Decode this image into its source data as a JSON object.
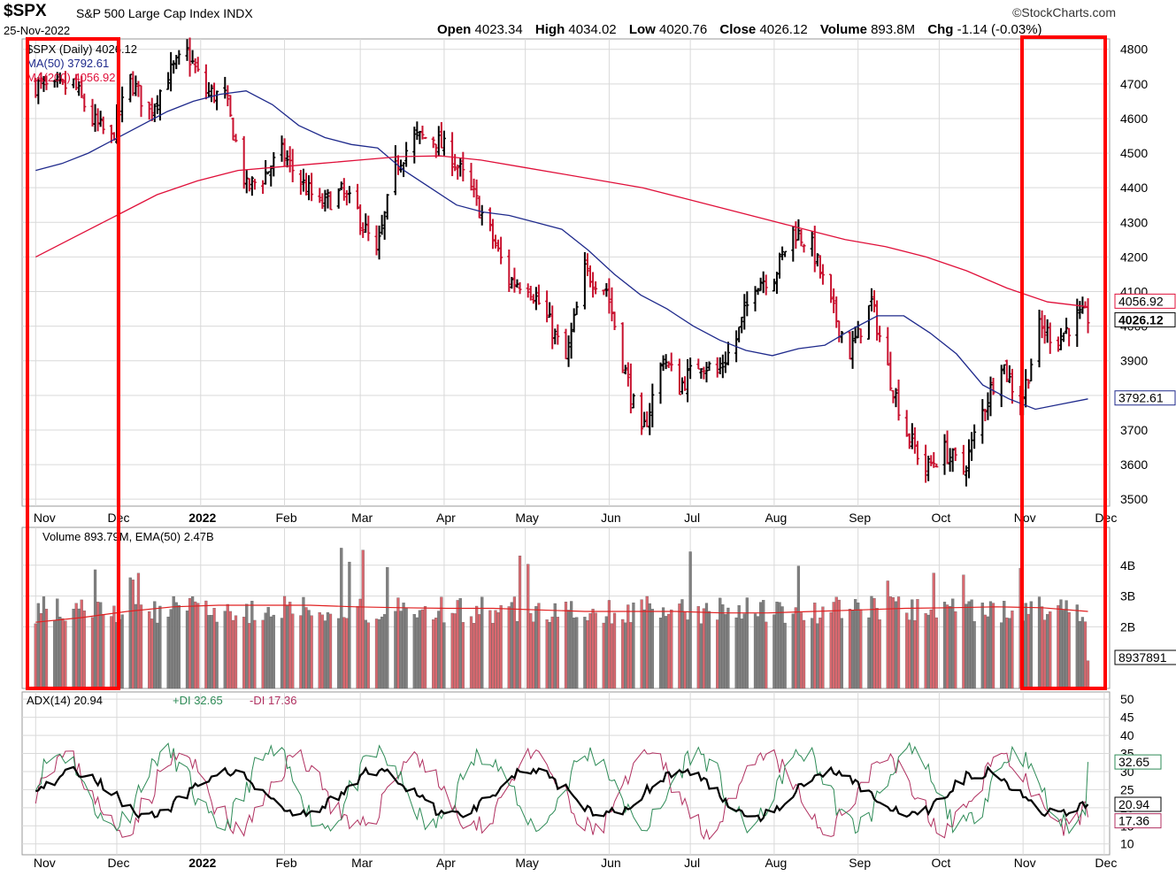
{
  "header": {
    "symbol": "$SPX",
    "name": "S&P 500 Large Cap Index INDX",
    "date": "25-Nov-2022",
    "logo": "©StockCharts.com",
    "open_label": "Open",
    "open": "4023.34",
    "high_label": "High",
    "high": "4034.02",
    "low_label": "Low",
    "low": "4020.76",
    "close_label": "Close",
    "close": "4026.12",
    "volume_label": "Volume",
    "volume": "893.8M",
    "chg_label": "Chg",
    "chg": "-1.14 (-0.03%)"
  },
  "colors": {
    "up": "#000000",
    "down": "#c8102e",
    "ma50": "#1f2a8c",
    "ma200": "#e0103a",
    "vol_up": "#808080",
    "vol_down": "#d9686f",
    "adx": "#000000",
    "pdi": "#2e8b57",
    "mdi": "#b03060",
    "highlight": "#ff0000",
    "grid": "#d9d9d9"
  },
  "chart_data": [
    {
      "type": "ohlc",
      "title": "$SPX (Daily) 4026.12",
      "legend": [
        "$SPX (Daily) 4026.12",
        "MA(50) 3792.61",
        "MA(200) 4056.92"
      ],
      "x_labels": [
        "Nov",
        "Dec",
        "2022",
        "Feb",
        "Mar",
        "Apr",
        "May",
        "Jun",
        "Jul",
        "Aug",
        "Sep",
        "Oct",
        "Nov",
        "Dec"
      ],
      "y_ticks": [
        3500,
        3600,
        3700,
        3800,
        3900,
        4000,
        4100,
        4200,
        4300,
        4400,
        4500,
        4600,
        4700,
        4800
      ],
      "ylim": [
        3480,
        4830
      ],
      "axis_tags": [
        "4056.92",
        "4026.12",
        "3792.61"
      ],
      "close_series": {
        "x": [
          "2021-11-01",
          "2021-11-08",
          "2021-11-15",
          "2021-11-22",
          "2021-11-29",
          "2021-12-06",
          "2021-12-13",
          "2021-12-20",
          "2021-12-27",
          "2022-01-03",
          "2022-01-10",
          "2022-01-18",
          "2022-01-24",
          "2022-01-31",
          "2022-02-07",
          "2022-02-14",
          "2022-02-22",
          "2022-02-28",
          "2022-03-07",
          "2022-03-14",
          "2022-03-21",
          "2022-03-28",
          "2022-04-04",
          "2022-04-11",
          "2022-04-18",
          "2022-04-25",
          "2022-05-02",
          "2022-05-09",
          "2022-05-16",
          "2022-05-23",
          "2022-05-31",
          "2022-06-06",
          "2022-06-13",
          "2022-06-21",
          "2022-06-27",
          "2022-07-05",
          "2022-07-11",
          "2022-07-18",
          "2022-07-25",
          "2022-08-01",
          "2022-08-08",
          "2022-08-15",
          "2022-08-22",
          "2022-08-29",
          "2022-09-06",
          "2022-09-12",
          "2022-09-19",
          "2022-09-26",
          "2022-10-03",
          "2022-10-10",
          "2022-10-17",
          "2022-10-24",
          "2022-10-31",
          "2022-11-07",
          "2022-11-14",
          "2022-11-21",
          "2022-11-25"
        ],
        "close": [
          4697,
          4682,
          4700,
          4595,
          4540,
          4712,
          4620,
          4725,
          4790,
          4677,
          4662,
          4398,
          4432,
          4500,
          4419,
          4349,
          4385,
          4329,
          4204,
          4463,
          4543,
          4546,
          4488,
          4392,
          4272,
          4132,
          4123,
          4024,
          3901,
          4158,
          4108,
          3901,
          3675,
          3912,
          3825,
          3899,
          3863,
          3962,
          4130,
          4145,
          4280,
          4228,
          4058,
          3924,
          4067,
          3874,
          3693,
          3586,
          3640,
          3583,
          3753,
          3901,
          3771,
          3993,
          3965,
          4026,
          4026
        ]
      },
      "ma50": {
        "x_start": "2021-11-01",
        "x_end": "2022-11-25",
        "values": [
          4450,
          4470,
          4500,
          4540,
          4580,
          4620,
          4650,
          4670,
          4680,
          4640,
          4580,
          4545,
          4525,
          4515,
          4450,
          4400,
          4350,
          4330,
          4320,
          4300,
          4280,
          4220,
          4150,
          4090,
          4050,
          4000,
          3960,
          3930,
          3915,
          3935,
          3945,
          3990,
          4030,
          4030,
          3980,
          3920,
          3830,
          3790,
          3760,
          3775,
          3790
        ]
      },
      "ma200": {
        "x_start": "2021-11-01",
        "x_end": "2022-11-25",
        "values": [
          4200,
          4260,
          4320,
          4380,
          4420,
          4450,
          4460,
          4470,
          4480,
          4490,
          4492,
          4480,
          4460,
          4440,
          4420,
          4400,
          4370,
          4340,
          4310,
          4280,
          4250,
          4230,
          4200,
          4160,
          4110,
          4070,
          4056
        ]
      }
    },
    {
      "type": "bar",
      "title": "Volume 893.79M, EMA(50) 2.47B",
      "legend": [
        "Volume 893.79M, EMA(50) 2.47B"
      ],
      "y_ticks": [
        "2B",
        "3B",
        "4B"
      ],
      "axis_tag": "8937891",
      "ylim": [
        0,
        5.0
      ],
      "unit": "billions"
    },
    {
      "type": "line",
      "title": "ADX(14) 20.94 +DI 32.65 -DI 17.36",
      "legend": [
        "ADX(14) 20.94",
        "+DI 32.65",
        "-DI 17.36"
      ],
      "y_ticks": [
        10,
        15,
        20,
        25,
        30,
        35,
        40,
        45,
        50
      ],
      "ylim": [
        7,
        52
      ],
      "axis_tags": [
        "32.65",
        "20.94",
        "17.36"
      ],
      "series": [
        {
          "name": "ADX(14)",
          "last": 20.94
        },
        {
          "name": "+DI",
          "last": 32.65
        },
        {
          "name": "-DI",
          "last": 17.36
        }
      ]
    }
  ]
}
